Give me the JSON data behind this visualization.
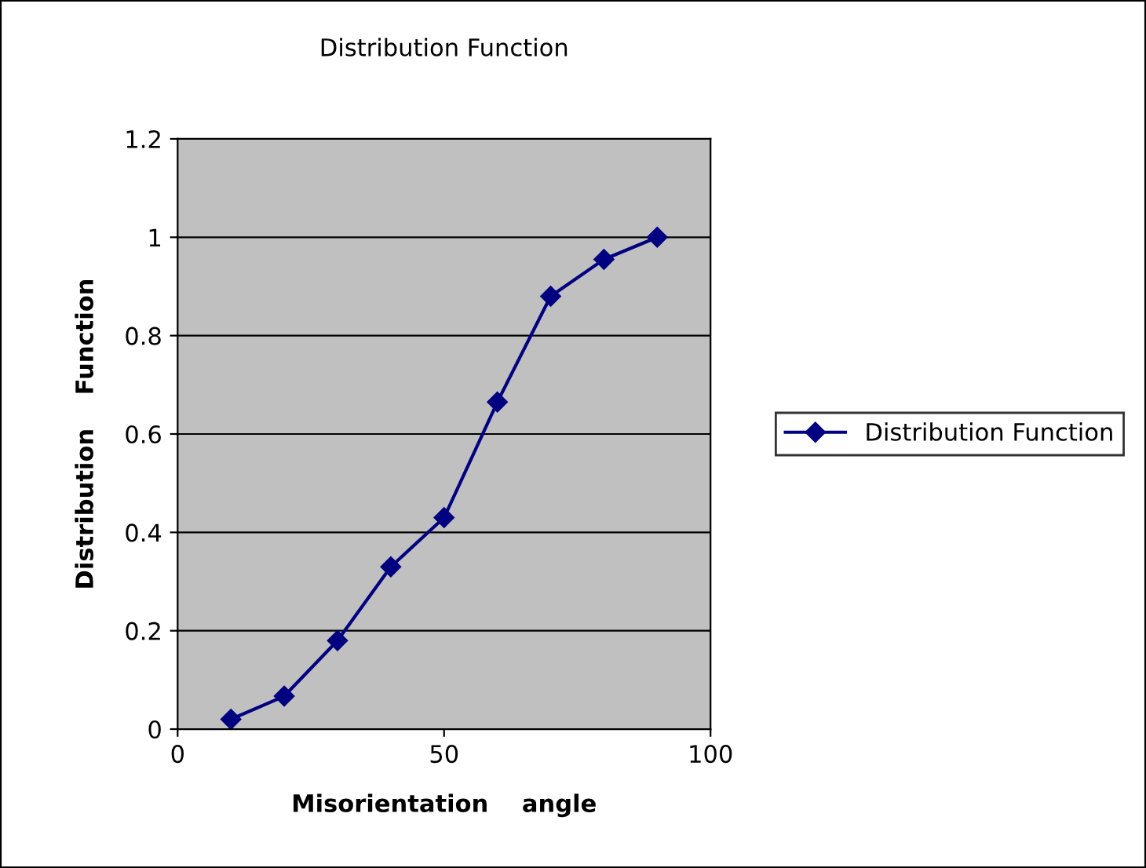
{
  "chart_data": {
    "type": "line",
    "title": "Distribution Function",
    "xlabel": "Misorientation    angle",
    "ylabel": "Distribution    Function",
    "x": [
      10,
      20,
      30,
      40,
      50,
      60,
      70,
      80,
      90
    ],
    "series": [
      {
        "name": "Distribution Function",
        "color": "#000080",
        "values": [
          0.02,
          0.067,
          0.18,
          0.33,
          0.43,
          0.665,
          0.88,
          0.955,
          1.0
        ]
      }
    ],
    "xlim": [
      0,
      100
    ],
    "xticks": [
      0,
      50,
      100
    ],
    "ylim": [
      0,
      1.2
    ],
    "yticks": [
      0,
      0.2,
      0.4,
      0.6,
      0.8,
      1,
      1.2
    ],
    "grid": "y",
    "legend": "right",
    "marker": "diamond",
    "line_style": "solid"
  }
}
